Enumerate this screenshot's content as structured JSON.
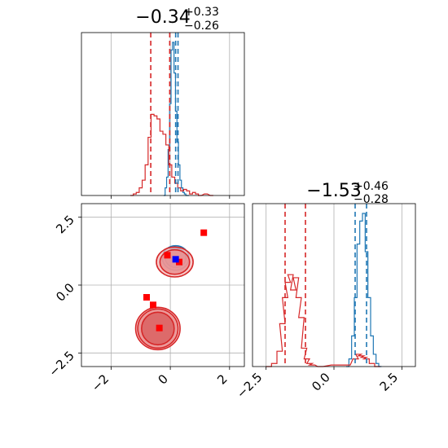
{
  "chart_data": [
    {
      "type": "histogram",
      "panel": "top-left marginal (parameter 1)",
      "title": {
        "median": "−0.34",
        "plus": "+0.33",
        "minus": "−0.26"
      },
      "xlim": [
        -3,
        2.5
      ],
      "xticks": [
        -2,
        0,
        2
      ],
      "tick_labels_shown": false,
      "grid": true,
      "series": [
        {
          "color": "#1f77b4",
          "x": [
            -0.2,
            -0.15,
            -0.1,
            -0.05,
            0.0,
            0.05,
            0.1,
            0.15,
            0.2,
            0.25,
            0.3,
            0.35,
            0.4,
            0.45,
            0.5,
            0.55,
            0.6
          ],
          "density": [
            0.0,
            0.05,
            0.12,
            0.3,
            0.6,
            0.95,
            1.0,
            0.8,
            0.55,
            0.35,
            0.2,
            0.1,
            0.05,
            0.02,
            0.01,
            0.0,
            0.0
          ],
          "quantiles": [
            0.18,
            0.26
          ]
        },
        {
          "color": "#d62728",
          "x": [
            -1.3,
            -1.2,
            -1.1,
            -1.0,
            -0.9,
            -0.8,
            -0.7,
            -0.6,
            -0.5,
            -0.4,
            -0.3,
            -0.2,
            -0.1,
            0.0,
            0.1,
            0.2,
            0.3,
            0.4,
            0.5,
            0.6,
            0.7,
            0.8,
            0.9,
            1.0,
            1.2,
            1.4
          ],
          "density": [
            0.0,
            0.01,
            0.02,
            0.05,
            0.1,
            0.2,
            0.38,
            0.53,
            0.52,
            0.5,
            0.42,
            0.4,
            0.33,
            0.2,
            0.12,
            0.08,
            0.05,
            0.03,
            0.04,
            0.03,
            0.01,
            0.02,
            0.01,
            0.0,
            0.01,
            0.0
          ],
          "quantiles": [
            -0.66,
            -0.02
          ]
        }
      ]
    },
    {
      "type": "histogram",
      "panel": "bottom-right marginal (parameter 2)",
      "title": {
        "median": "−1.53",
        "plus": "+0.46",
        "minus": "−0.28"
      },
      "xlim": [
        -3,
        3
      ],
      "xticks": [
        -2.5,
        0.0,
        2.5
      ],
      "xtick_labels": [
        "−2.5",
        "0.0",
        "2.5"
      ],
      "grid": true,
      "series": [
        {
          "color": "#1f77b4",
          "x": [
            0.5,
            0.6,
            0.7,
            0.8,
            0.9,
            1.0,
            1.1,
            1.2,
            1.3,
            1.4,
            1.5,
            1.6,
            1.7
          ],
          "density": [
            0.0,
            0.05,
            0.2,
            0.45,
            0.8,
            0.95,
            1.0,
            0.75,
            0.45,
            0.2,
            0.08,
            0.02,
            0.0
          ],
          "quantiles": [
            0.78,
            1.2
          ]
        },
        {
          "color": "#d62728",
          "x": [
            -2.4,
            -2.2,
            -2.0,
            -1.9,
            -1.8,
            -1.7,
            -1.6,
            -1.5,
            -1.4,
            -1.3,
            -1.2,
            -1.1,
            -1.0,
            -0.9,
            -0.8,
            -0.5,
            0.0,
            0.5,
            0.8,
            0.9,
            1.0,
            1.1,
            1.2,
            1.4,
            1.6
          ],
          "density": [
            0.0,
            0.02,
            0.1,
            0.28,
            0.45,
            0.55,
            0.6,
            0.5,
            0.58,
            0.45,
            0.32,
            0.12,
            0.05,
            0.02,
            0.01,
            0.0,
            0.01,
            0.01,
            0.05,
            0.08,
            0.07,
            0.06,
            0.05,
            0.02,
            0.0
          ],
          "quantiles": [
            -1.8,
            -1.05
          ]
        }
      ]
    },
    {
      "type": "scatter",
      "panel": "bottom-left joint (param 1 vs param 2)",
      "xlim": [
        -3,
        2.5
      ],
      "ylim": [
        -3,
        3
      ],
      "xticks": [
        -2,
        0,
        2
      ],
      "xtick_labels": [
        "−2",
        "0",
        "2"
      ],
      "yticks": [
        -2.5,
        0.0,
        2.5
      ],
      "ytick_labels": [
        "−2.5",
        "0.0",
        "2.5"
      ],
      "grid": true,
      "contours": [
        {
          "color": "#1f77b4",
          "center": [
            0.18,
            1.0
          ],
          "radii": [
            [
              0.35,
              0.35
            ],
            [
              0.45,
              0.45
            ]
          ]
        },
        {
          "color": "#d62728",
          "center": [
            0.15,
            0.85
          ],
          "radii": [
            [
              0.5,
              0.45
            ],
            [
              0.62,
              0.55
            ]
          ]
        },
        {
          "color": "#d62728",
          "center": [
            -0.42,
            -1.6
          ],
          "radii": [
            [
              0.55,
              0.6
            ],
            [
              0.68,
              0.72
            ],
            [
              0.75,
              0.78
            ]
          ]
        }
      ],
      "series": [
        {
          "color": "#ff0000",
          "marker": "square",
          "points": [
            [
              1.13,
              1.93
            ],
            [
              -0.8,
              -0.45
            ],
            [
              -0.58,
              -0.73
            ],
            [
              -0.37,
              -1.58
            ],
            [
              -0.1,
              1.1
            ],
            [
              0.3,
              0.85
            ]
          ]
        },
        {
          "color": "#0000ff",
          "marker": "square",
          "points": [
            [
              0.18,
              0.95
            ]
          ]
        }
      ]
    }
  ]
}
